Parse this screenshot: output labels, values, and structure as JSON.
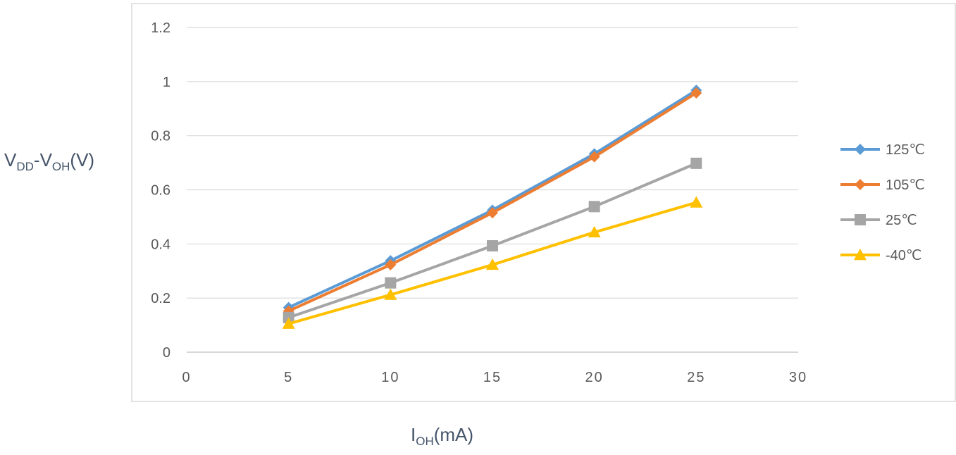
{
  "chart_data": {
    "type": "line",
    "title": "",
    "x": [
      5,
      10,
      15,
      20,
      25
    ],
    "series": [
      {
        "name": "125℃",
        "values": [
          0.165,
          0.338,
          0.525,
          0.733,
          0.968
        ],
        "color": "#5b9bd5",
        "marker": "diamond"
      },
      {
        "name": "105℃",
        "values": [
          0.152,
          0.323,
          0.515,
          0.722,
          0.958
        ],
        "color": "#ed7d31",
        "marker": "diamond"
      },
      {
        "name": "25℃",
        "values": [
          0.128,
          0.256,
          0.393,
          0.538,
          0.698
        ],
        "color": "#a5a5a5",
        "marker": "square"
      },
      {
        "name": "-40℃",
        "values": [
          0.105,
          0.212,
          0.323,
          0.443,
          0.553
        ],
        "color": "#ffc000",
        "marker": "triangle"
      }
    ],
    "xlim": [
      0,
      30
    ],
    "ylim": [
      0,
      1.2
    ],
    "xticks": [
      0,
      5,
      10,
      15,
      20,
      25,
      30
    ],
    "yticks": [
      0,
      0.2,
      0.4,
      0.6,
      0.8,
      1,
      1.2
    ],
    "xtick_labels": [
      "0",
      "5",
      "10",
      "15",
      "20",
      "25",
      "30"
    ],
    "ytick_labels": [
      "0",
      "0.2",
      "0.4",
      "0.6",
      "0.8",
      "1",
      "1.2"
    ],
    "xlabel": {
      "main": "I",
      "sub": "OH",
      "rest": "(mA)"
    },
    "ylabel": {
      "v1": "V",
      "sub1": "DD",
      "dash": "-V",
      "sub2": "OH",
      "rest": "(V)"
    },
    "grid": true,
    "legend_position": "right"
  }
}
